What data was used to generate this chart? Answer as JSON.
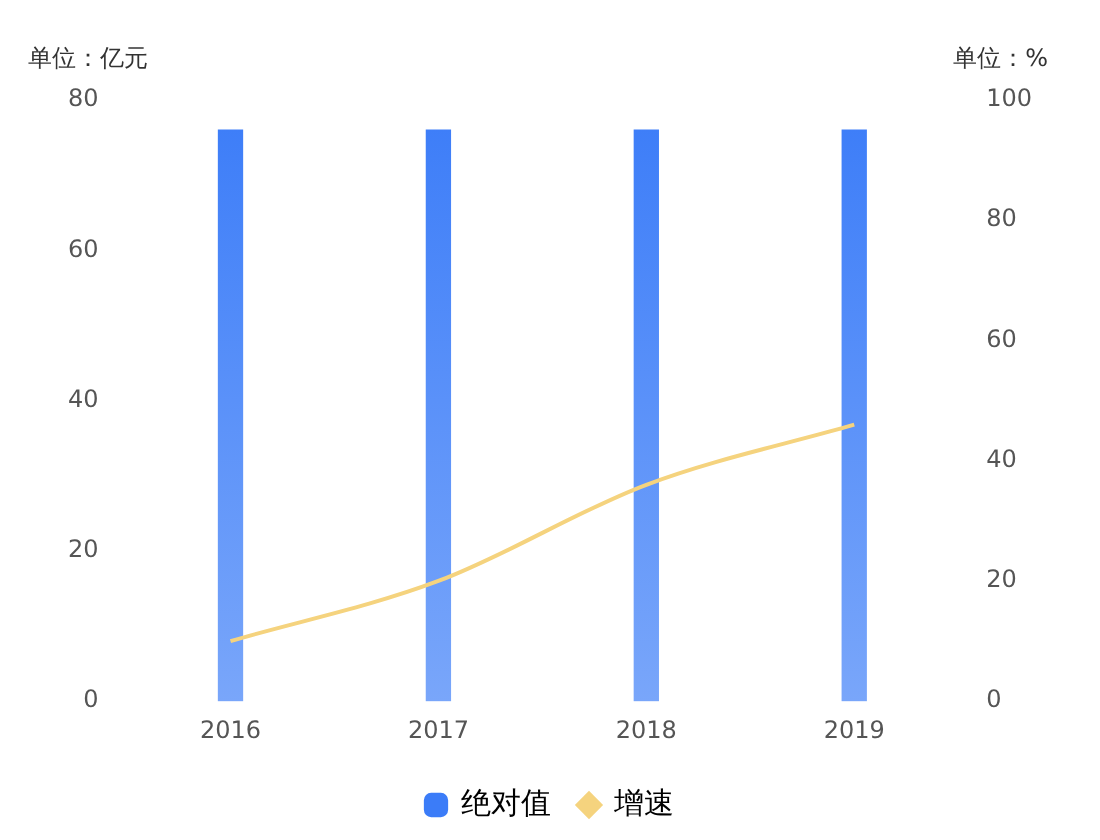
{
  "chart_data": {
    "type": "bar",
    "categories": [
      "2016",
      "2017",
      "2018",
      "2019"
    ],
    "series": [
      {
        "name": "绝对值",
        "color": "#3b7cf8",
        "values": [
          76,
          76,
          76,
          76
        ]
      },
      {
        "name": "增速",
        "type": "line",
        "axis": "y2",
        "color": "#f5d37e",
        "values": [
          10,
          20,
          36,
          46
        ]
      }
    ],
    "ylabel": "单位：亿元",
    "y2label": "单位：%",
    "ylim": [
      0,
      80
    ],
    "yticks": [
      0,
      20,
      40,
      60,
      80
    ],
    "y2lim": [
      0,
      100
    ],
    "y2ticks": [
      0,
      20,
      40,
      60,
      80,
      100
    ],
    "grid": false,
    "legend": "bottom",
    "marker": "none",
    "line_style": "solid"
  }
}
